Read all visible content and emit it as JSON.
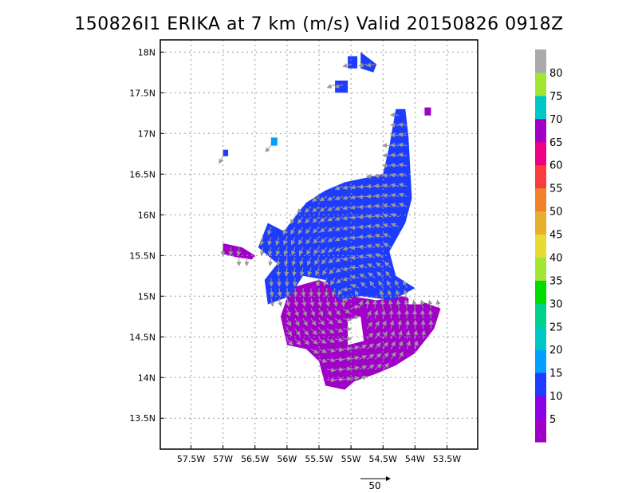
{
  "chart_data": {
    "type": "heatmap",
    "title": "150826I1 ERIKA at 7 km (m/s) Valid 20150826 0918Z",
    "x_ticks": [
      "57.5W",
      "57W",
      "56.5W",
      "56W",
      "55.5W",
      "55W",
      "54.5W",
      "54W",
      "53.5W"
    ],
    "x_values": [
      -57.5,
      -57.0,
      -56.5,
      -56.0,
      -55.5,
      -55.0,
      -54.5,
      -54.0,
      -53.5
    ],
    "y_ticks": [
      "13.5N",
      "14N",
      "14.5N",
      "15N",
      "15.5N",
      "16N",
      "16.5N",
      "17N",
      "17.5N",
      "18N"
    ],
    "y_values": [
      13.5,
      14.0,
      14.5,
      15.0,
      15.5,
      16.0,
      16.5,
      17.0,
      17.5,
      18.0
    ],
    "xlim": [
      -57.98,
      -53.02
    ],
    "ylim": [
      13.12,
      18.15
    ],
    "grid": true,
    "colorbar": {
      "labels": [
        "5",
        "10",
        "15",
        "20",
        "25",
        "30",
        "35",
        "40",
        "45",
        "50",
        "55",
        "60",
        "65",
        "70",
        "75",
        "80"
      ],
      "bands": [
        {
          "min": 0,
          "max": 5,
          "color": "#a000c8"
        },
        {
          "min": 5,
          "max": 10,
          "color": "#8c00e6"
        },
        {
          "min": 10,
          "max": 15,
          "color": "#1e3cff"
        },
        {
          "min": 15,
          "max": 20,
          "color": "#00a0ff"
        },
        {
          "min": 20,
          "max": 25,
          "color": "#00c8c8"
        },
        {
          "min": 25,
          "max": 30,
          "color": "#00d28c"
        },
        {
          "min": 30,
          "max": 35,
          "color": "#00dc00"
        },
        {
          "min": 35,
          "max": 40,
          "color": "#a0e632"
        },
        {
          "min": 40,
          "max": 45,
          "color": "#e6dc32"
        },
        {
          "min": 45,
          "max": 50,
          "color": "#e6af2d"
        },
        {
          "min": 50,
          "max": 55,
          "color": "#f08228"
        },
        {
          "min": 55,
          "max": 60,
          "color": "#fa3c3c"
        },
        {
          "min": 60,
          "max": 65,
          "color": "#f00082"
        },
        {
          "min": 65,
          "max": 70,
          "color": "#a000c8"
        },
        {
          "min": 70,
          "max": 75,
          "color": "#00c8c8"
        },
        {
          "min": 75,
          "max": 80,
          "color": "#a0e632"
        },
        {
          "min": 80,
          "max": 85,
          "color": "#aaaaaa"
        }
      ]
    },
    "regions": [
      {
        "label": "main-wind-field-purple",
        "speed_ms": 5,
        "color": "#a000c8",
        "polygon": [
          [
            -55.95,
            15.1
          ],
          [
            -55.5,
            15.2
          ],
          [
            -55.0,
            15.0
          ],
          [
            -54.6,
            14.95
          ],
          [
            -54.2,
            15.0
          ],
          [
            -53.95,
            14.95
          ],
          [
            -53.6,
            14.85
          ],
          [
            -53.7,
            14.6
          ],
          [
            -54.0,
            14.3
          ],
          [
            -54.3,
            14.15
          ],
          [
            -54.6,
            14.05
          ],
          [
            -54.95,
            13.95
          ],
          [
            -55.1,
            13.85
          ],
          [
            -55.4,
            13.9
          ],
          [
            -55.5,
            14.2
          ],
          [
            -55.7,
            14.35
          ],
          [
            -56.0,
            14.4
          ],
          [
            -56.1,
            14.75
          ]
        ]
      },
      {
        "label": "main-wind-field-blue",
        "speed_ms": 10,
        "color": "#1e3cff",
        "polygon": [
          [
            -56.3,
            15.9
          ],
          [
            -56.05,
            15.8
          ],
          [
            -55.9,
            15.95
          ],
          [
            -55.7,
            16.15
          ],
          [
            -55.4,
            16.3
          ],
          [
            -55.1,
            16.4
          ],
          [
            -54.8,
            16.45
          ],
          [
            -54.5,
            16.5
          ],
          [
            -54.4,
            16.85
          ],
          [
            -54.3,
            17.3
          ],
          [
            -54.15,
            17.3
          ],
          [
            -54.1,
            16.95
          ],
          [
            -54.05,
            16.2
          ],
          [
            -54.15,
            15.9
          ],
          [
            -54.4,
            15.55
          ],
          [
            -54.3,
            15.25
          ],
          [
            -54.0,
            15.1
          ],
          [
            -54.35,
            14.95
          ],
          [
            -54.85,
            15.0
          ],
          [
            -55.2,
            14.95
          ],
          [
            -55.4,
            15.2
          ],
          [
            -55.75,
            15.25
          ],
          [
            -55.95,
            15.0
          ],
          [
            -56.3,
            14.9
          ],
          [
            -56.35,
            15.2
          ],
          [
            -56.15,
            15.4
          ],
          [
            -56.45,
            15.6
          ]
        ]
      },
      {
        "label": "west-arm-purple",
        "speed_ms": 5,
        "color": "#a000c8",
        "polygon": [
          [
            -57.0,
            15.65
          ],
          [
            -56.7,
            15.6
          ],
          [
            -56.5,
            15.5
          ],
          [
            -56.55,
            15.45
          ],
          [
            -56.8,
            15.48
          ],
          [
            -57.0,
            15.52
          ]
        ]
      },
      {
        "label": "north-blob-a",
        "speed_ms": 10,
        "color": "#1e3cff",
        "polygon": [
          [
            -55.05,
            17.95
          ],
          [
            -54.9,
            17.95
          ],
          [
            -54.9,
            17.8
          ],
          [
            -55.05,
            17.8
          ]
        ]
      },
      {
        "label": "north-blob-b",
        "speed_ms": 10,
        "color": "#1e3cff",
        "polygon": [
          [
            -54.85,
            18.0
          ],
          [
            -54.6,
            17.85
          ],
          [
            -54.65,
            17.75
          ],
          [
            -54.85,
            17.8
          ]
        ]
      },
      {
        "label": "north-blob-c",
        "speed_ms": 10,
        "color": "#1e3cff",
        "polygon": [
          [
            -55.25,
            17.65
          ],
          [
            -55.05,
            17.65
          ],
          [
            -55.05,
            17.5
          ],
          [
            -55.25,
            17.5
          ]
        ]
      },
      {
        "label": "west-blob",
        "speed_ms": 10,
        "color": "#1e3cff",
        "polygon": [
          [
            -57.0,
            16.8
          ],
          [
            -56.92,
            16.8
          ],
          [
            -56.92,
            16.72
          ],
          [
            -57.0,
            16.72
          ]
        ]
      },
      {
        "label": "cyan-blob",
        "speed_ms": 15,
        "color": "#00a0ff",
        "polygon": [
          [
            -56.25,
            16.95
          ],
          [
            -56.15,
            16.95
          ],
          [
            -56.15,
            16.85
          ],
          [
            -56.25,
            16.85
          ]
        ]
      },
      {
        "label": "east-purple-dot",
        "speed_ms": 5,
        "color": "#a000c8",
        "polygon": [
          [
            -53.85,
            17.32
          ],
          [
            -53.75,
            17.32
          ],
          [
            -53.75,
            17.22
          ],
          [
            -53.85,
            17.22
          ]
        ]
      }
    ],
    "holes": [
      {
        "label": "hole-1",
        "polygon": [
          [
            -55.05,
            14.7
          ],
          [
            -54.85,
            14.75
          ],
          [
            -54.8,
            14.45
          ],
          [
            -55.05,
            14.4
          ]
        ]
      },
      {
        "label": "hole-2",
        "polygon": [
          [
            -54.1,
            15.05
          ],
          [
            -53.9,
            15.05
          ],
          [
            -53.9,
            14.9
          ],
          [
            -54.1,
            14.9
          ]
        ]
      }
    ],
    "reference_vector": {
      "label": "50",
      "value_ms": 50
    }
  }
}
